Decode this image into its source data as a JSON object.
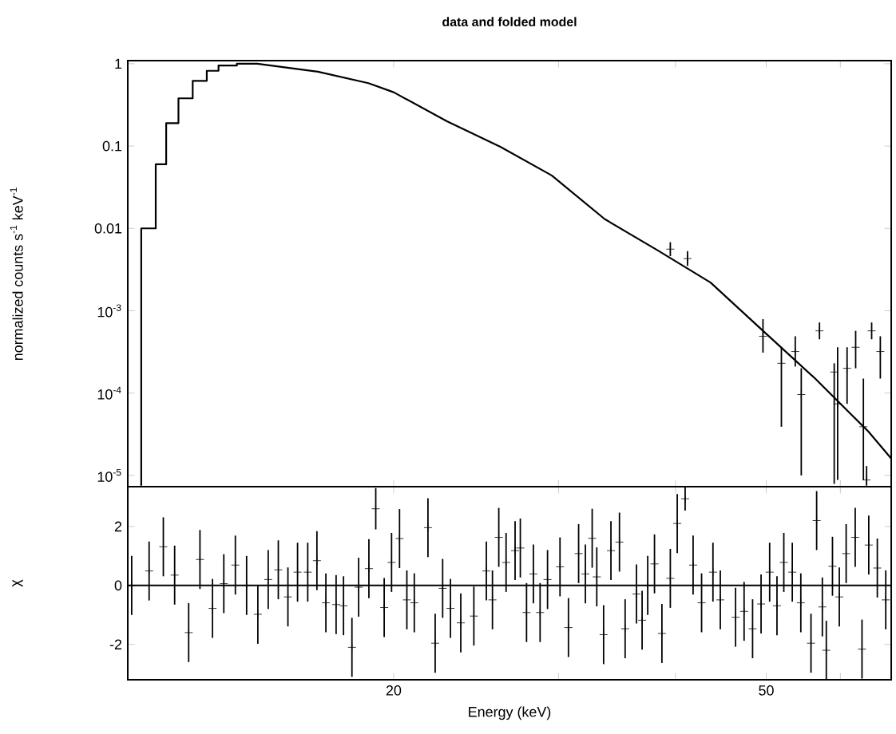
{
  "chart_data": [
    {
      "type": "line",
      "title": "data and folded model",
      "ylabel": "normalized counts s$^{-1}$ keV$^{-1}$",
      "log": "xy",
      "tick_labels": "y",
      "xlim": [
        10.4,
        68
      ],
      "xticks": [
        20,
        {
          "value": 30,
          "label": null
        },
        {
          "value": 40,
          "label": null
        },
        50,
        {
          "value": 60,
          "label": null
        }
      ],
      "ylim": [
        7.3e-06,
        1.09
      ],
      "yticks": [
        1,
        0.1,
        0.01,
        {
          "value": 0.001,
          "label": "10$^{-3}$"
        },
        {
          "value": 0.0001,
          "label": "10$^{-4}$"
        },
        {
          "value": 1e-05,
          "label": "10$^{-5}$"
        }
      ],
      "series": [
        {
          "type": "line",
          "marker": "none",
          "color": "#000000",
          "x": [
            10.75,
            10.75,
            11.14,
            11.14,
            11.43,
            11.43,
            11.78,
            11.78,
            12.2,
            12.2,
            12.63,
            12.63,
            13.0,
            13.0,
            13.6,
            13.6,
            14.3,
            16.6,
            18.8,
            20,
            22.8,
            26.0,
            29.5,
            33.6,
            38.3,
            43.6,
            49.6,
            56.4,
            64.3,
            68
          ],
          "values": [
            7.5e-06,
            0.01,
            0.01,
            0.06,
            0.06,
            0.19,
            0.19,
            0.38,
            0.38,
            0.62,
            0.62,
            0.82,
            0.82,
            0.95,
            0.95,
            1.0,
            1.0,
            0.8,
            0.58,
            0.45,
            0.2,
            0.098,
            0.044,
            0.013,
            0.0054,
            0.0022,
            0.00057,
            0.00015,
            3.4e-05,
            1.6e-05
          ]
        },
        {
          "type": "scatter",
          "marker": "cross",
          "color": "#000000",
          "x": [
            39.5,
            41.2,
            49.6,
            51.9,
            53.7,
            54.5,
            57.0,
            59.1,
            59.6,
            61.0,
            62.3,
            63.5,
            64.0,
            64.8,
            66.2
          ],
          "values": [
            0.0056,
            0.0043,
            0.00049,
            0.00023,
            0.00032,
            9.6e-05,
            0.00057,
            0.00018,
            7.4e-05,
            0.0002,
            0.00036,
            3.9e-05,
            8.8e-06,
            0.00057,
            0.00032
          ],
          "errors": [
            [
              0.0046,
              0.0068
            ],
            [
              0.0035,
              0.0053
            ],
            [
              0.00031,
              0.00079
            ],
            [
              3.9e-05,
              0.00036
            ],
            [
              0.00021,
              0.00049
            ],
            [
              1e-05,
              0.0002
            ],
            [
              0.00045,
              0.00072
            ],
            [
              7.9e-06,
              0.00023
            ],
            [
              8.8e-06,
              0.00036
            ],
            [
              7.4e-05,
              0.00036
            ],
            [
              0.0002,
              0.00057
            ],
            [
              8.8e-06,
              0.00015
            ],
            [
              7.5e-06,
              1.3e-05
            ],
            [
              0.00045,
              0.00072
            ],
            [
              0.00015,
              0.00049
            ]
          ]
        }
      ]
    },
    {
      "type": "scatter",
      "xlabel": "Energy (keV)",
      "ylabel": "χ",
      "log": "x",
      "marker": "cross",
      "color": "#000000",
      "xlim": [
        10.4,
        68
      ],
      "xticks": [
        20,
        {
          "value": 30,
          "label": null
        },
        {
          "value": 40,
          "label": null
        },
        50,
        {
          "value": 60,
          "label": null
        }
      ],
      "ylim": [
        -3.2,
        3.35
      ],
      "yticks": [
        -2,
        0,
        2
      ],
      "ref_lines": [
        {
          "axis": "y",
          "value": 0
        }
      ],
      "x": [
        10.5,
        10.96,
        11.35,
        11.67,
        12.08,
        12.42,
        12.81,
        13.17,
        13.55,
        13.93,
        14.32,
        14.69,
        15.06,
        15.42,
        15.79,
        16.19,
        16.56,
        16.93,
        17.36,
        17.68,
        18.05,
        18.35,
        18.82,
        19.14,
        19.54,
        19.9,
        20.29,
        20.66,
        21.04,
        21.76,
        22.15,
        22.56,
        23.0,
        23.59,
        24.36,
        25.12,
        25.5,
        25.9,
        26.37,
        26.96,
        27.31,
        27.73,
        28.2,
        28.67,
        29.2,
        30.11,
        30.74,
        31.52,
        32.05,
        32.59,
        32.96,
        33.52,
        34.13,
        34.85,
        35.34,
        36.34,
        36.85,
        37.36,
        37.99,
        38.69,
        39.5,
        40.17,
        40.96,
        41.77,
        42.65,
        43.86,
        44.66,
        46.37,
        47.35,
        48.35,
        49.37,
        50.42,
        51.34,
        52.21,
        53.31,
        54.44,
        55.82,
        56.6,
        57.4,
        57.96,
        58.85,
        59.85,
        60.86,
        62.23,
        63.28,
        64.34,
        65.71,
        67.09
      ],
      "values": [
        0,
        0.49,
        1.31,
        0.35,
        -1.6,
        0.88,
        -0.78,
        0.06,
        0.69,
        0.0,
        -0.98,
        0.2,
        0.53,
        -0.39,
        0.45,
        0.45,
        0.84,
        -0.59,
        -0.65,
        -0.69,
        -2.1,
        -0.06,
        0.57,
        2.6,
        -0.75,
        0.78,
        1.59,
        -0.49,
        -0.59,
        1.96,
        -1.96,
        -0.1,
        -0.78,
        -1.27,
        -1.04,
        0.49,
        -0.49,
        1.63,
        0.78,
        1.18,
        1.27,
        -0.92,
        0.39,
        -0.92,
        0.2,
        0.63,
        -1.43,
        1.08,
        0.39,
        1.6,
        0.29,
        -1.67,
        1.18,
        1.47,
        -1.47,
        -0.29,
        -1.18,
        0.0,
        0.73,
        -1.63,
        0.24,
        2.1,
        2.94,
        0.69,
        -0.59,
        0.45,
        -0.49,
        -1.08,
        -0.88,
        -1.47,
        -0.63,
        0.45,
        -0.69,
        0.78,
        0.45,
        -0.59,
        -1.96,
        2.2,
        -0.73,
        -2.2,
        0.65,
        -0.39,
        1.08,
        1.63,
        -2.16,
        1.37,
        0.59,
        -0.49
      ],
      "errors": [
        1,
        1,
        1,
        1,
        1,
        1,
        1,
        1,
        1,
        1,
        1,
        1,
        1,
        1,
        1,
        1,
        1,
        1,
        1,
        1,
        1,
        1,
        1,
        0.7,
        1,
        1,
        1,
        1,
        1,
        1,
        1,
        1,
        1,
        1,
        1,
        1,
        1,
        1,
        1,
        1,
        1,
        1,
        1,
        1,
        1,
        1,
        1,
        1,
        1,
        1,
        1,
        1,
        1,
        1,
        1,
        1,
        1,
        1,
        1,
        1,
        1,
        1,
        0.4,
        1,
        1,
        1,
        1,
        1,
        1,
        1,
        1,
        1,
        1,
        1,
        1,
        1,
        1,
        1,
        1,
        1,
        1,
        1,
        1,
        1,
        1,
        1,
        1,
        1
      ]
    }
  ]
}
